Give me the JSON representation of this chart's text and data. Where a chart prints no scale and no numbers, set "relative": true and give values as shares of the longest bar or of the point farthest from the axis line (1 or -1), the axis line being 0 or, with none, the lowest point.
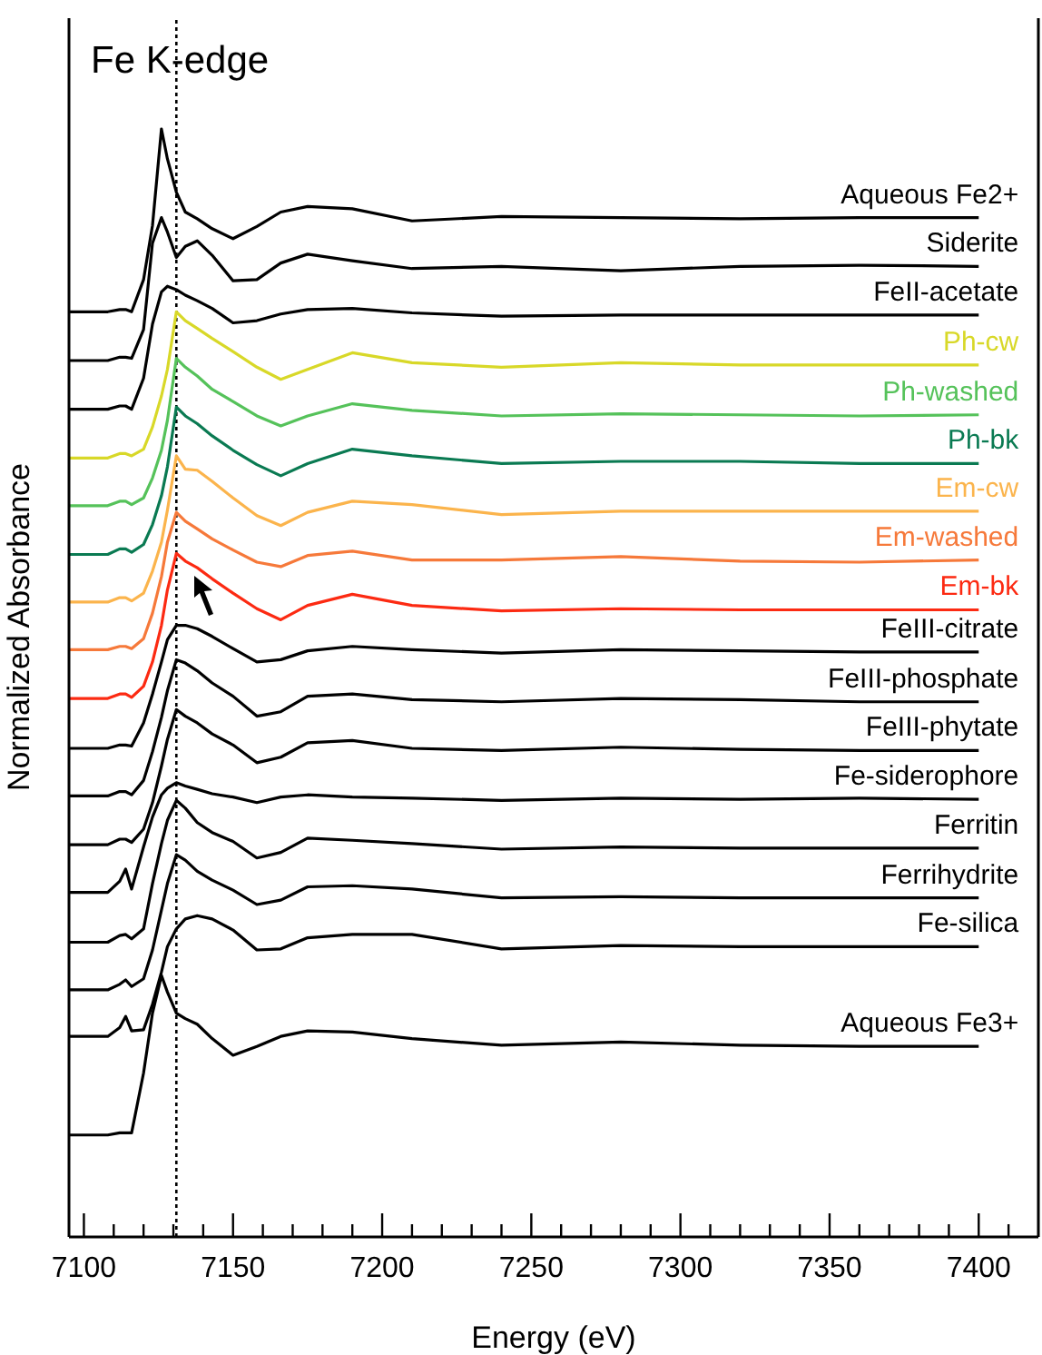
{
  "chart_data": {
    "type": "line",
    "title": "Fe K-edge",
    "xlabel": "Energy (eV)",
    "ylabel": "Normalized Absorbance",
    "relative": true,
    "legend": false,
    "marker": "none",
    "line_style": "solid",
    "x": [
      7095,
      7108,
      7112,
      7114,
      7116,
      7120,
      7123,
      7126,
      7128,
      7131,
      7134,
      7138,
      7143,
      7150,
      7158,
      7166,
      7175,
      7190,
      7210,
      7240,
      7280,
      7320,
      7360,
      7400
    ],
    "xlim": [
      7095,
      7420
    ],
    "xticks": [
      7100,
      {
        "value": 7110,
        "label": null
      },
      {
        "value": 7120,
        "label": null
      },
      {
        "value": 7130,
        "label": null
      },
      {
        "value": 7140,
        "label": null
      },
      7150,
      {
        "value": 7160,
        "label": null
      },
      {
        "value": 7170,
        "label": null
      },
      {
        "value": 7180,
        "label": null
      },
      {
        "value": 7190,
        "label": null
      },
      7200,
      {
        "value": 7210,
        "label": null
      },
      {
        "value": 7220,
        "label": null
      },
      {
        "value": 7230,
        "label": null
      },
      {
        "value": 7240,
        "label": null
      },
      7250,
      {
        "value": 7260,
        "label": null
      },
      {
        "value": 7270,
        "label": null
      },
      {
        "value": 7280,
        "label": null
      },
      {
        "value": 7290,
        "label": null
      },
      7300,
      {
        "value": 7310,
        "label": null
      },
      {
        "value": 7320,
        "label": null
      },
      {
        "value": 7330,
        "label": null
      },
      {
        "value": 7340,
        "label": null
      },
      7350,
      {
        "value": 7360,
        "label": null
      },
      {
        "value": 7370,
        "label": null
      },
      {
        "value": 7380,
        "label": null
      },
      {
        "value": 7390,
        "label": null
      },
      7400,
      {
        "value": 7410,
        "label": null
      }
    ],
    "ref_lines": [
      {
        "axis": "x",
        "value": 7131,
        "line_style": "dotted",
        "color": "#000000"
      }
    ],
    "series": [
      {
        "name": "Aqueous Fe2+",
        "color": "#000000",
        "values": [
          0.835,
          0.835,
          0.837,
          0.837,
          0.835,
          0.864,
          0.913,
          1.0,
          0.973,
          0.943,
          0.925,
          0.919,
          0.91,
          0.901,
          0.912,
          0.925,
          0.93,
          0.928,
          0.917,
          0.921,
          0.92,
          0.919,
          0.92,
          0.92
        ]
      },
      {
        "name": "Siderite",
        "color": "#000000",
        "values": [
          0.791,
          0.791,
          0.794,
          0.794,
          0.793,
          0.819,
          0.897,
          0.92,
          0.907,
          0.884,
          0.894,
          0.899,
          0.886,
          0.863,
          0.864,
          0.879,
          0.887,
          0.881,
          0.874,
          0.876,
          0.872,
          0.876,
          0.877,
          0.876
        ]
      },
      {
        "name": "FeII-acetate",
        "color": "#000000",
        "values": [
          0.747,
          0.747,
          0.75,
          0.75,
          0.747,
          0.775,
          0.824,
          0.853,
          0.858,
          0.855,
          0.85,
          0.845,
          0.838,
          0.825,
          0.827,
          0.833,
          0.837,
          0.838,
          0.834,
          0.831,
          0.832,
          0.832,
          0.832,
          0.832
        ]
      },
      {
        "name": "Ph-cw",
        "color": "#d8d828",
        "values": [
          0.703,
          0.703,
          0.707,
          0.707,
          0.705,
          0.711,
          0.731,
          0.759,
          0.783,
          0.835,
          0.827,
          0.82,
          0.811,
          0.799,
          0.785,
          0.774,
          0.783,
          0.798,
          0.789,
          0.785,
          0.789,
          0.787,
          0.787,
          0.787
        ]
      },
      {
        "name": "Ph-washed",
        "color": "#55c25a",
        "values": [
          0.66,
          0.66,
          0.664,
          0.664,
          0.661,
          0.667,
          0.685,
          0.71,
          0.737,
          0.793,
          0.785,
          0.777,
          0.765,
          0.754,
          0.741,
          0.732,
          0.741,
          0.752,
          0.746,
          0.741,
          0.743,
          0.742,
          0.741,
          0.742
        ]
      },
      {
        "name": "Ph-bk",
        "color": "#0a7a52",
        "values": [
          0.616,
          0.616,
          0.621,
          0.621,
          0.618,
          0.625,
          0.643,
          0.669,
          0.695,
          0.749,
          0.741,
          0.734,
          0.723,
          0.71,
          0.697,
          0.687,
          0.698,
          0.711,
          0.705,
          0.698,
          0.7,
          0.7,
          0.698,
          0.698
        ]
      },
      {
        "name": "Em-cw",
        "color": "#fbb44c",
        "values": [
          0.573,
          0.573,
          0.577,
          0.577,
          0.574,
          0.581,
          0.601,
          0.627,
          0.656,
          0.705,
          0.693,
          0.692,
          0.682,
          0.667,
          0.651,
          0.642,
          0.654,
          0.664,
          0.661,
          0.652,
          0.655,
          0.655,
          0.655,
          0.655
        ]
      },
      {
        "name": "Em-washed",
        "color": "#f6793a",
        "values": [
          0.53,
          0.53,
          0.533,
          0.533,
          0.531,
          0.54,
          0.563,
          0.596,
          0.627,
          0.654,
          0.646,
          0.639,
          0.63,
          0.62,
          0.609,
          0.605,
          0.615,
          0.619,
          0.611,
          0.611,
          0.614,
          0.61,
          0.609,
          0.611
        ]
      },
      {
        "name": "Em-bk",
        "color": "#fc2a12",
        "values": [
          0.486,
          0.486,
          0.49,
          0.49,
          0.487,
          0.497,
          0.519,
          0.552,
          0.584,
          0.617,
          0.61,
          0.604,
          0.594,
          0.581,
          0.567,
          0.557,
          0.57,
          0.58,
          0.57,
          0.565,
          0.567,
          0.566,
          0.566,
          0.566
        ]
      },
      {
        "name": "FeIII-citrate",
        "color": "#000000",
        "values": [
          0.441,
          0.441,
          0.444,
          0.444,
          0.443,
          0.464,
          0.49,
          0.519,
          0.539,
          0.552,
          0.552,
          0.549,
          0.542,
          0.531,
          0.519,
          0.521,
          0.529,
          0.533,
          0.53,
          0.527,
          0.53,
          0.529,
          0.528,
          0.528
        ]
      },
      {
        "name": "FeIII-phosphate",
        "color": "#000000",
        "values": [
          0.398,
          0.398,
          0.402,
          0.402,
          0.399,
          0.412,
          0.438,
          0.469,
          0.493,
          0.521,
          0.518,
          0.511,
          0.5,
          0.488,
          0.47,
          0.474,
          0.488,
          0.49,
          0.485,
          0.483,
          0.486,
          0.485,
          0.483,
          0.483
        ]
      },
      {
        "name": "FeIII-phytate",
        "color": "#000000",
        "values": [
          0.354,
          0.354,
          0.359,
          0.359,
          0.356,
          0.368,
          0.392,
          0.425,
          0.449,
          0.476,
          0.47,
          0.464,
          0.454,
          0.444,
          0.428,
          0.433,
          0.446,
          0.448,
          0.441,
          0.439,
          0.442,
          0.44,
          0.439,
          0.439
        ]
      },
      {
        "name": "Fe-siderophore",
        "color": "#000000",
        "values": [
          0.311,
          0.311,
          0.321,
          0.332,
          0.314,
          0.352,
          0.379,
          0.399,
          0.405,
          0.41,
          0.407,
          0.404,
          0.4,
          0.397,
          0.392,
          0.397,
          0.399,
          0.397,
          0.396,
          0.394,
          0.396,
          0.395,
          0.396,
          0.395
        ]
      },
      {
        "name": "Ferritin",
        "color": "#000000",
        "values": [
          0.266,
          0.266,
          0.272,
          0.273,
          0.269,
          0.278,
          0.319,
          0.355,
          0.376,
          0.394,
          0.387,
          0.374,
          0.365,
          0.357,
          0.342,
          0.347,
          0.36,
          0.358,
          0.355,
          0.35,
          0.352,
          0.351,
          0.351,
          0.351
        ]
      },
      {
        "name": "Ferrihydrite",
        "color": "#000000",
        "values": [
          0.223,
          0.223,
          0.228,
          0.232,
          0.226,
          0.233,
          0.259,
          0.295,
          0.319,
          0.345,
          0.34,
          0.33,
          0.322,
          0.313,
          0.3,
          0.304,
          0.316,
          0.317,
          0.314,
          0.306,
          0.307,
          0.306,
          0.306,
          0.306
        ]
      },
      {
        "name": "Fe-silica",
        "color": "#000000",
        "values": [
          0.181,
          0.181,
          0.189,
          0.199,
          0.186,
          0.187,
          0.21,
          0.239,
          0.262,
          0.278,
          0.287,
          0.29,
          0.287,
          0.277,
          0.259,
          0.26,
          0.27,
          0.273,
          0.273,
          0.26,
          0.263,
          0.262,
          0.262,
          0.262
        ]
      },
      {
        "name": "Aqueous Fe3+",
        "color": "#000000",
        "values": [
          0.092,
          0.092,
          0.094,
          0.094,
          0.094,
          0.148,
          0.202,
          0.236,
          0.221,
          0.202,
          0.197,
          0.192,
          0.179,
          0.164,
          0.172,
          0.181,
          0.186,
          0.185,
          0.179,
          0.173,
          0.176,
          0.173,
          0.172,
          0.172
        ]
      }
    ]
  }
}
